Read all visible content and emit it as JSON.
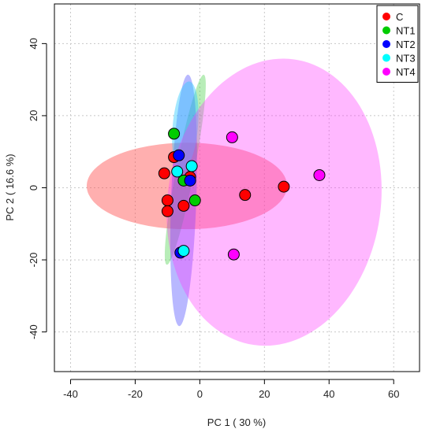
{
  "chart_data": {
    "type": "scatter",
    "title": "",
    "xlabel": "PC 1 ( 30 %)",
    "ylabel": "PC 2 ( 16.6 %)",
    "xlim": [
      -45,
      68
    ],
    "ylim": [
      -51,
      51
    ],
    "xticks": [
      -40,
      -20,
      0,
      20,
      40,
      60
    ],
    "yticks": [
      -40,
      -20,
      0,
      20,
      40
    ],
    "x_tick_labels": [
      "-40",
      "-20",
      "0",
      "20",
      "40",
      "60"
    ],
    "y_tick_labels": [
      "-40",
      "-20",
      "0",
      "20",
      "40"
    ],
    "grid": true,
    "legend_position": "top-right",
    "series": [
      {
        "name": "C",
        "color": "#ff0000",
        "points": [
          [
            -11,
            4
          ],
          [
            -10,
            -3.5
          ],
          [
            -10,
            -6.5
          ],
          [
            -8,
            8.5
          ],
          [
            -5,
            -5
          ],
          [
            -3,
            3
          ],
          [
            14,
            -2
          ],
          [
            26,
            0.3
          ]
        ],
        "ellipse": {
          "cx": -4,
          "cy": 0.5,
          "rx": 31,
          "ry": 12,
          "angle": 0,
          "fill": "#ff4d4d",
          "opacity": 0.45
        }
      },
      {
        "name": "NT1",
        "color": "#00cc00",
        "points": [
          [
            -8,
            15
          ],
          [
            -5,
            2
          ],
          [
            -1.5,
            -3.5
          ]
        ],
        "ellipse": {
          "cx": -4.5,
          "cy": 5,
          "rx": 30,
          "ry": 2.5,
          "angle": -79,
          "fill": "#33cc33",
          "opacity": 0.35
        }
      },
      {
        "name": "NT2",
        "color": "#0000ff",
        "points": [
          [
            -6.5,
            9
          ],
          [
            -3,
            2
          ],
          [
            -6,
            -18
          ]
        ],
        "ellipse": {
          "cx": -5,
          "cy": -3.5,
          "rx": 39,
          "ry": 3.5,
          "angle": -88,
          "fill": "#3333ff",
          "opacity": 0.35
        }
      },
      {
        "name": "NT3",
        "color": "#00ffff",
        "points": [
          [
            -7,
            4.5
          ],
          [
            -2.5,
            6
          ],
          [
            -5,
            -17.5
          ]
        ],
        "ellipse": {
          "cx": -4.5,
          "cy": 17,
          "rx": 14,
          "ry": 3.5,
          "angle": -85,
          "fill": "#33ccff",
          "opacity": 0.45
        }
      },
      {
        "name": "NT4",
        "color": "#ff00ff",
        "points": [
          [
            10,
            14
          ],
          [
            37,
            3.5
          ],
          [
            10.5,
            -18.5
          ]
        ],
        "ellipse": {
          "cx": 23,
          "cy": -4,
          "rx": 33,
          "ry": 40,
          "angle": 8,
          "fill": "#ff33ff",
          "opacity": 0.35
        }
      }
    ]
  }
}
